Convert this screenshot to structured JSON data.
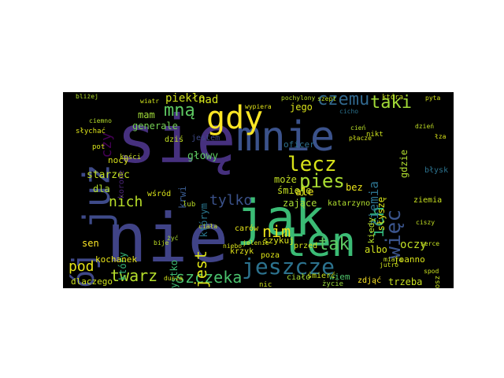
{
  "words": [
    {
      "text": "się",
      "color": "#46307e"
    },
    {
      "text": "nie",
      "color": "#404387"
    },
    {
      "text": "jak",
      "color": "#3bbb75"
    },
    {
      "text": "mnie",
      "color": "#3b528b"
    },
    {
      "text": "ten",
      "color": "#3bbb75"
    },
    {
      "text": "już",
      "color": "#3e4a89"
    },
    {
      "text": "mój",
      "color": "#3f4889"
    },
    {
      "text": "gdy",
      "color": "#fde725"
    },
    {
      "text": "jeszcze",
      "color": "#2c728e"
    },
    {
      "text": "lecz",
      "color": "#d8e219"
    },
    {
      "text": "pies",
      "color": "#aadc32"
    },
    {
      "text": "czemu",
      "color": "#31688e"
    },
    {
      "text": "taki",
      "color": "#a2da37"
    },
    {
      "text": "mną",
      "color": "#5ec962"
    },
    {
      "text": "szczeka",
      "color": "#4ac16d"
    },
    {
      "text": "twarz",
      "color": "#b5de2b"
    },
    {
      "text": "tak",
      "color": "#5ec962"
    },
    {
      "text": "nim",
      "color": "#ece51b"
    },
    {
      "text": "nich",
      "color": "#b8de29"
    },
    {
      "text": "tylko",
      "color": "#3b528b"
    },
    {
      "text": "więc",
      "color": "#3a548c"
    },
    {
      "text": "ich",
      "color": "#31b57b"
    },
    {
      "text": "pod",
      "color": "#e5e419"
    },
    {
      "text": "jest",
      "color": "#dde318"
    },
    {
      "text": "czy",
      "color": "#440154"
    },
    {
      "text": "oczy",
      "color": "#c0df25"
    },
    {
      "text": "ziemia",
      "color": "#2c728e"
    },
    {
      "text": "piekło",
      "color": "#d0e11c"
    },
    {
      "text": "nad",
      "color": "#d2e21b"
    },
    {
      "text": "mam",
      "color": "#a0da39"
    },
    {
      "text": "generale",
      "color": "#75d054"
    },
    {
      "text": "może",
      "color": "#c2df23"
    },
    {
      "text": "ale",
      "color": "#efe51c"
    },
    {
      "text": "który",
      "color": "#35b779"
    },
    {
      "text": "głowy",
      "color": "#5ec962"
    },
    {
      "text": "którym",
      "color": "#2a768e"
    },
    {
      "text": "krwi",
      "color": "#38598c"
    },
    {
      "text": "dla",
      "color": "#b2dd2d"
    },
    {
      "text": "śmieje",
      "color": "#c5e021"
    },
    {
      "text": "zające",
      "color": "#a8db34"
    },
    {
      "text": "słyszę",
      "color": "#d5e21a"
    },
    {
      "text": "gdzie",
      "color": "#b0dd2f"
    },
    {
      "text": "bez",
      "color": "#ece51b"
    },
    {
      "text": "jego",
      "color": "#dae319"
    },
    {
      "text": "oficer",
      "color": "#2d708e"
    },
    {
      "text": "starzec",
      "color": "#c2df23"
    },
    {
      "text": "nocy",
      "color": "#d8e219"
    },
    {
      "text": "sen",
      "color": "#fde725"
    },
    {
      "text": "wszystko",
      "color": "#3dbc74"
    },
    {
      "text": "kochanek",
      "color": "#e7e419"
    },
    {
      "text": "dlaczego",
      "color": "#cde11d"
    },
    {
      "text": "kiedy",
      "color": "#b5de2b"
    },
    {
      "text": "albo",
      "color": "#d0e11c"
    },
    {
      "text": "joanno",
      "color": "#d8e219"
    },
    {
      "text": "trzeba",
      "color": "#c8e020"
    },
    {
      "text": "zdjąć",
      "color": "#fde725"
    },
    {
      "text": "wiem",
      "color": "#4ec36b"
    },
    {
      "text": "ciało",
      "color": "#a5db36"
    },
    {
      "text": "śmierć",
      "color": "#c5e021"
    },
    {
      "text": "szykuj",
      "color": "#d8e219"
    },
    {
      "text": "krzyk",
      "color": "#e2e418"
    },
    {
      "text": "poza",
      "color": "#dde318"
    },
    {
      "text": "katarzyno",
      "color": "#b0dd2f"
    },
    {
      "text": "carów",
      "color": "#e5e419"
    },
    {
      "text": "jestem",
      "color": "#3e4989"
    },
    {
      "text": "dziś",
      "color": "#c2df23"
    },
    {
      "text": "korone",
      "color": "#482374"
    },
    {
      "text": "wśród",
      "color": "#d8e219"
    },
    {
      "text": "ziemia",
      "color": "#c8e020"
    },
    {
      "text": "rozkosz",
      "color": "#c5e021"
    },
    {
      "text": "błysk",
      "color": "#2c728e"
    },
    {
      "text": "pot",
      "color": "#d5e21a"
    },
    {
      "text": "kości",
      "color": "#c8e020"
    },
    {
      "text": "słychać",
      "color": "#dde318"
    },
    {
      "text": "przed",
      "color": "#d0e11c"
    },
    {
      "text": "życie",
      "color": "#9bd93c"
    },
    {
      "text": "nikt",
      "color": "#cde11d"
    },
    {
      "text": "która",
      "color": "#c8e020"
    },
    {
      "text": "wypiera",
      "color": "#e2e418"
    },
    {
      "text": "pochylony",
      "color": "#b8de29"
    },
    {
      "text": "bliżej",
      "color": "#b2dd2d"
    },
    {
      "text": "cicho",
      "color": "#2c728e"
    },
    {
      "text": "jelenie",
      "color": "#d5e21a"
    },
    {
      "text": "ciała",
      "color": "#c2df23"
    },
    {
      "text": "miara",
      "color": "#c8e020"
    },
    {
      "text": "jutro",
      "color": "#cde11d"
    },
    {
      "text": "nic",
      "color": "#d0e11c"
    },
    {
      "text": "lub",
      "color": "#bddf26"
    },
    {
      "text": "spod",
      "color": "#cae11f"
    },
    {
      "text": "ciszy",
      "color": "#c2df23"
    },
    {
      "text": "pyta",
      "color": "#d2e21b"
    },
    {
      "text": "żyć",
      "color": "#aadc32"
    },
    {
      "text": "bije",
      "color": "#c0df25"
    },
    {
      "text": "dusza",
      "color": "#d2e21b"
    },
    {
      "text": "szept",
      "color": "#bddf26"
    },
    {
      "text": "płacze",
      "color": "#d2e21b"
    },
    {
      "text": "ciemno",
      "color": "#b5de2b"
    },
    {
      "text": "łza",
      "color": "#dae319"
    },
    {
      "text": "serce",
      "color": "#c5e021"
    },
    {
      "text": "niebo",
      "color": "#d8e219"
    },
    {
      "text": "wiatr",
      "color": "#cde11d"
    },
    {
      "text": "cień",
      "color": "#b8de29"
    },
    {
      "text": "dzień",
      "color": "#c0df25"
    }
  ]
}
